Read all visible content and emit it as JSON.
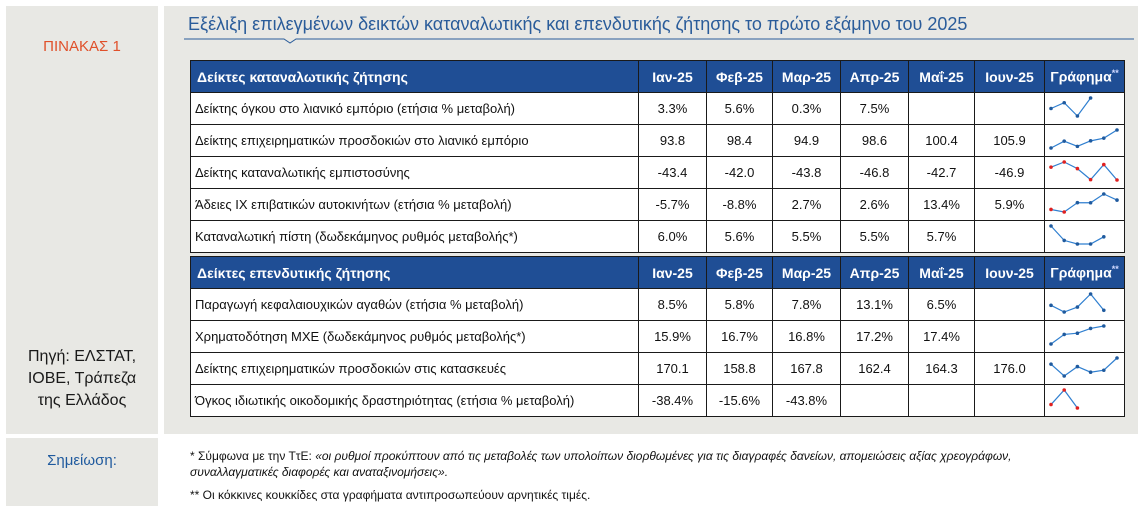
{
  "table_label": "ΠΙΝΑΚΑΣ 1",
  "title": "Εξέλιξη επιλεγμένων δεικτών καταναλωτικής και επενδυτικής ζήτησης το πρώτο εξάμηνο του 2025",
  "source_lines": [
    "Πηγή: ΕΛΣΤΑΤ,",
    "ΙΟΒΕ, Τράπεζα",
    "της Ελλάδος"
  ],
  "months": [
    "Ιαν-25",
    "Φεβ-25",
    "Μαρ-25",
    "Απρ-25",
    "Μαΐ-25",
    "Ιουν-25"
  ],
  "chart_header": "Γράφημα",
  "chart_header_mark": "**",
  "colors": {
    "header_bg": "#1f4e95",
    "positive": "#1f5a9e",
    "negative": "#e02020",
    "line": "#2f7fd0"
  },
  "consumer": {
    "header": "Δείκτες καταναλωτικής ζήτησης",
    "rows": [
      {
        "label": "Δείκτης όγκου στο λιανικό εμπόριο (ετήσια % μεταβολή)",
        "cells": [
          "3.3%",
          "5.6%",
          "0.3%",
          "7.5%",
          "",
          ""
        ],
        "series": [
          3.3,
          5.6,
          0.3,
          7.5
        ]
      },
      {
        "label": "Δείκτης επιχειρηματικών προσδοκιών στο λιανικό εμπόριο",
        "cells": [
          "93.8",
          "98.4",
          "94.9",
          "98.6",
          "100.4",
          "105.9"
        ],
        "series": [
          93.8,
          98.4,
          94.9,
          98.6,
          100.4,
          105.9
        ]
      },
      {
        "label": "Δείκτης καταναλωτικής εμπιστοσύνης",
        "cells": [
          "-43.4",
          "-42.0",
          "-43.8",
          "-46.8",
          "-42.7",
          "-46.9"
        ],
        "series": [
          -43.4,
          -42.0,
          -43.8,
          -46.8,
          -42.7,
          -46.9
        ]
      },
      {
        "label": "Άδειες ΙΧ επιβατικών αυτοκινήτων (ετήσια % μεταβολή)",
        "cells": [
          "-5.7%",
          "-8.8%",
          "2.7%",
          "2.6%",
          "13.4%",
          "5.9%"
        ],
        "series": [
          -5.7,
          -8.8,
          2.7,
          2.6,
          13.4,
          5.9
        ]
      },
      {
        "label": "Καταναλωτική πίστη (δωδεκάμηνος ρυθμός μεταβολής*)",
        "cells": [
          "6.0%",
          "5.6%",
          "5.5%",
          "5.5%",
          "5.7%",
          ""
        ],
        "series": [
          6.0,
          5.6,
          5.5,
          5.5,
          5.7
        ]
      }
    ]
  },
  "investment": {
    "header": "Δείκτες επενδυτικής ζήτησης",
    "rows": [
      {
        "label": "Παραγωγή κεφαλαιουχικών αγαθών (ετήσια % μεταβολή)",
        "cells": [
          "8.5%",
          "5.8%",
          "7.8%",
          "13.1%",
          "6.5%",
          ""
        ],
        "series": [
          8.5,
          5.8,
          7.8,
          13.1,
          6.5
        ]
      },
      {
        "label": "Χρηματοδότηση ΜΧΕ (δωδεκάμηνος ρυθμός μεταβολής*)",
        "cells": [
          "15.9%",
          "16.7%",
          "16.8%",
          "17.2%",
          "17.4%",
          ""
        ],
        "series": [
          15.9,
          16.7,
          16.8,
          17.2,
          17.4
        ]
      },
      {
        "label": "Δείκτης επιχειρηματικών προσδοκιών στις κατασκευές",
        "cells": [
          "170.1",
          "158.8",
          "167.8",
          "162.4",
          "164.3",
          "176.0"
        ],
        "series": [
          170.1,
          158.8,
          167.8,
          162.4,
          164.3,
          176.0
        ]
      },
      {
        "label": "Όγκος ιδιωτικής οικοδομικής δραστηριότητας (ετήσια % μεταβολή)",
        "cells": [
          "-38.4%",
          "-15.6%",
          "-43.8%",
          "",
          "",
          ""
        ],
        "series": [
          -38.4,
          -15.6,
          -43.8
        ]
      }
    ]
  },
  "note_label": "Σημείωση:",
  "note1_prefix": "* Σύμφωνα με την ΤτΕ: ",
  "note1_italic": "«οι ρυθμοί προκύπτουν από τις μεταβολές των υπολοίπων διορθωμένες για τις διαγραφές δανείων, απομειώσεις αξίας χρεογράφων, συναλλαγματικές διαφορές και αναταξινομήσεις».",
  "note2": "** Οι κόκκινες κουκκίδες στα γραφήματα αντιπροσωπεύουν αρνητικές τιμές."
}
